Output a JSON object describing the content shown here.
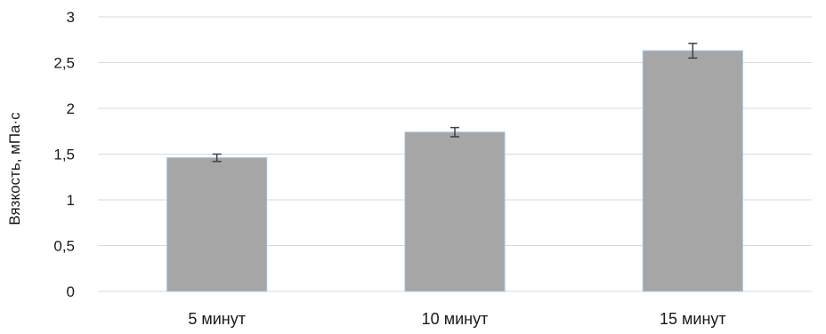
{
  "chart_data": {
    "type": "bar",
    "categories": [
      "5 минут",
      "10 минут",
      "15 минут"
    ],
    "series": [
      {
        "values": [
          1.46,
          1.74,
          2.63
        ],
        "error": [
          0.04,
          0.05,
          0.08
        ]
      }
    ],
    "ylabel": "Вязкость,  мПа·с",
    "xlabel": "",
    "ylim": [
      0,
      3
    ],
    "yticks": [
      0,
      0.5,
      1,
      1.5,
      2,
      2.5,
      3
    ],
    "ytick_labels": [
      "0",
      "0,5",
      "1",
      "1,5",
      "2",
      "2,5",
      "3"
    ],
    "grid": true,
    "legend": "none",
    "colors": {
      "bar": "#a6a6a6",
      "bar_edge": "#9dc3e6",
      "grid": "#d9d9d9",
      "error_bar": "#404040"
    }
  }
}
